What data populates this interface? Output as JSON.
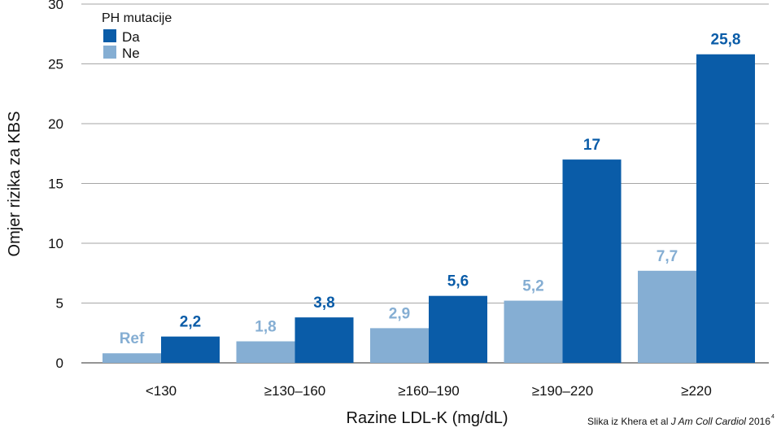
{
  "chart_data": {
    "type": "bar",
    "categories": [
      "<130",
      "≥130–160",
      "≥160–190",
      "≥190–220",
      "≥220"
    ],
    "series": [
      {
        "name": "Ne",
        "values": [
          0.8,
          1.8,
          2.9,
          5.2,
          7.7
        ],
        "labels": [
          "Ref",
          "1,8",
          "2,9",
          "5,2",
          "7,7"
        ],
        "color": "#85aed3"
      },
      {
        "name": "Da",
        "values": [
          2.2,
          3.8,
          5.6,
          17,
          25.8
        ],
        "labels": [
          "2,2",
          "3,8",
          "5,6",
          "17",
          "25,8"
        ],
        "color": "#0a5ca8"
      }
    ],
    "xlabel": "Razine LDL-K  (mg/dL)",
    "ylabel": "Omjer rizika za KBS",
    "ylim": [
      0,
      30
    ],
    "yticks": [
      0,
      5,
      10,
      15,
      20,
      25,
      30
    ],
    "grid": true,
    "legend": {
      "title": "PH mutacije",
      "position": "top-left",
      "entries": [
        "Da",
        "Ne"
      ]
    }
  },
  "source": {
    "prefix": "Slika iz Khera et al ",
    "journal": "J Am Coll Cardiol",
    "year": " 2016",
    "sup": "4"
  },
  "colors": {
    "grid": "#a6a6a6",
    "axis": "#555555",
    "text": "#111111"
  }
}
